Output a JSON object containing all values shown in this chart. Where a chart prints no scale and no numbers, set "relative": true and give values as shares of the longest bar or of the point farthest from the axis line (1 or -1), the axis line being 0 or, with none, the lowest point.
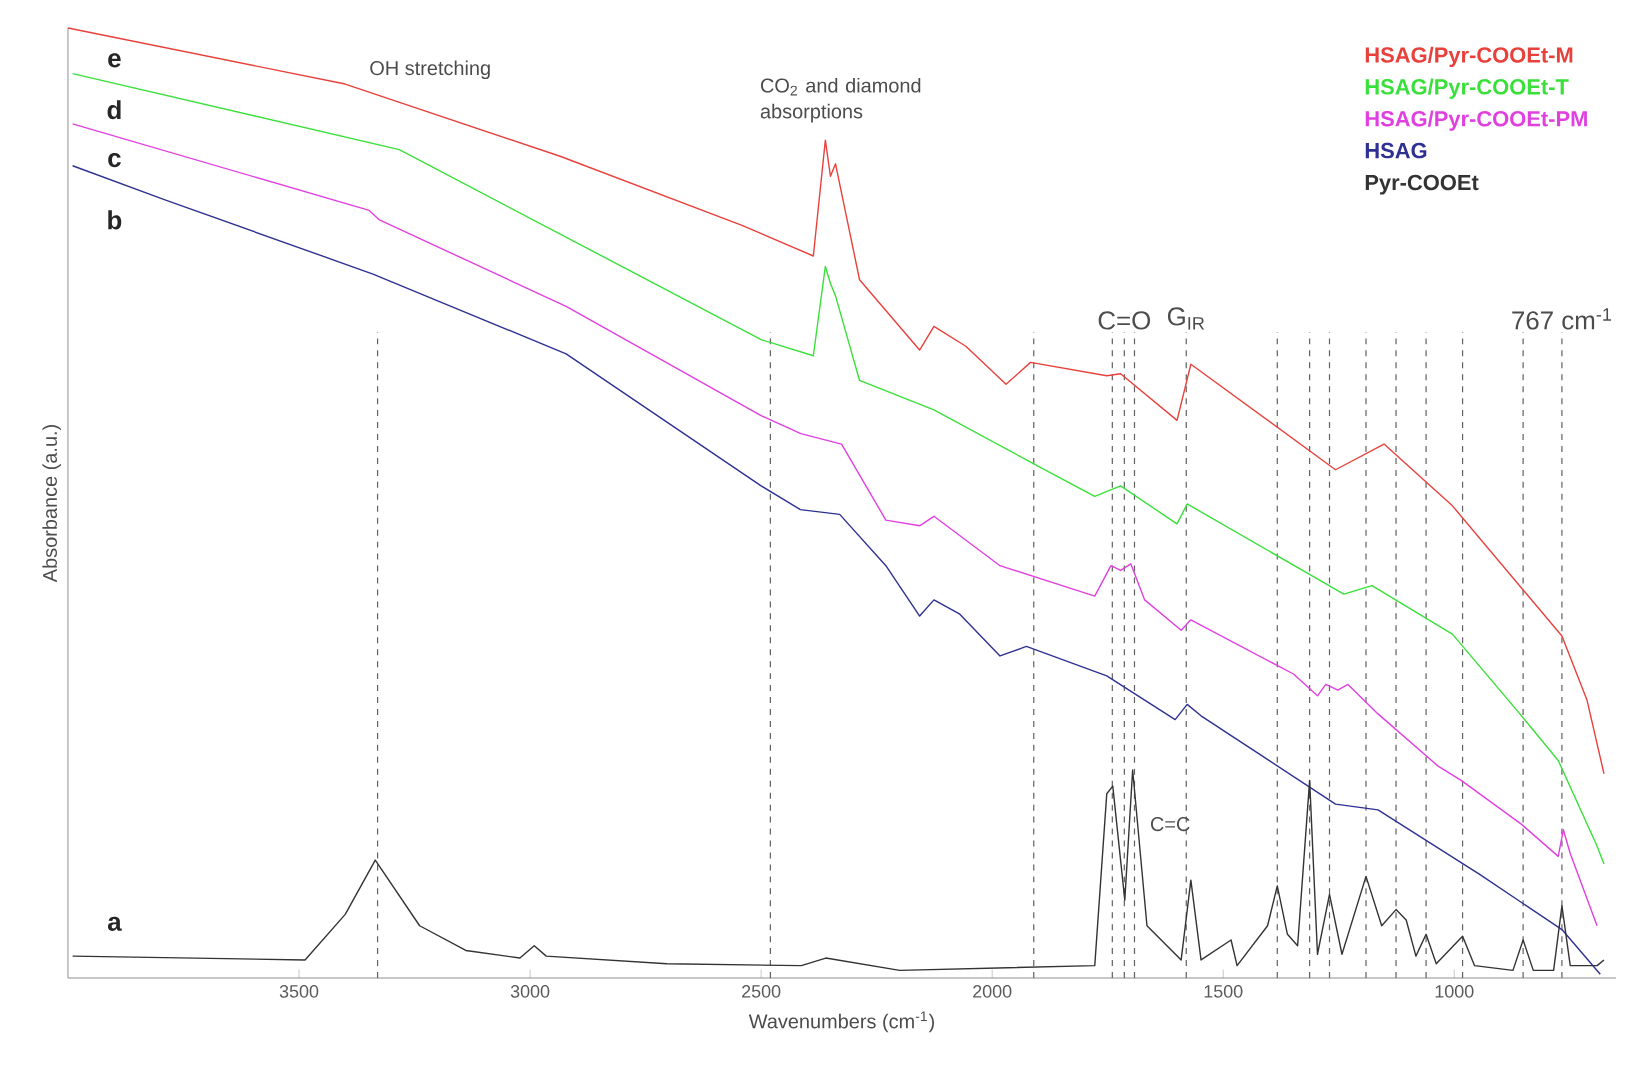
{
  "chart_data": {
    "type": "line",
    "relative": true,
    "xlabel": "Wavenumbers (cm$^{-1}$)",
    "ylabel": "Absorbance (a.u.)",
    "xlim": [
      4000,
      650
    ],
    "xticks": [
      3500,
      3000,
      2500,
      2000,
      1500,
      1000
    ],
    "legend": "top right",
    "line_style": "solid",
    "series": [
      {
        "name": "HSAG/Pyr-COOEt-M",
        "color": "#e8413b",
        "x": [
          4000,
          3400,
          2935,
          2540,
          2387,
          2361,
          2350,
          2339,
          2287,
          2157,
          2126,
          2057,
          1970,
          1917,
          1752,
          1722,
          1600,
          1570,
          1257,
          1152,
          1004,
          767,
          713,
          676
        ],
        "values": [
          1.0,
          0.941,
          0.865,
          0.792,
          0.76,
          0.882,
          0.844,
          0.857,
          0.735,
          0.661,
          0.686,
          0.665,
          0.625,
          0.648,
          0.634,
          0.636,
          0.587,
          0.646,
          0.535,
          0.562,
          0.497,
          0.36,
          0.293,
          0.215
        ]
      },
      {
        "name": "HSAG/Pyr-COOEt-T",
        "color": "#3ae03a",
        "x": [
          3990,
          3283,
          2500,
          2387,
          2361,
          2350,
          2339,
          2287,
          2126,
          1909,
          1778,
          1722,
          1600,
          1578,
          1239,
          1178,
          1004,
          858,
          775,
          691,
          676
        ],
        "values": [
          0.952,
          0.872,
          0.672,
          0.655,
          0.749,
          0.731,
          0.718,
          0.629,
          0.598,
          0.541,
          0.507,
          0.518,
          0.478,
          0.499,
          0.404,
          0.413,
          0.362,
          0.278,
          0.229,
          0.139,
          0.12
        ]
      },
      {
        "name": "HSAG/Pyr-COOEt-PM",
        "color": "#e040e0",
        "x": [
          3990,
          3348,
          3326,
          2922,
          2500,
          2414,
          2326,
          2230,
          2157,
          2126,
          1983,
          1778,
          1743,
          1722,
          1700,
          1670,
          1591,
          1570,
          1348,
          1296,
          1278,
          1252,
          1230,
          1165,
          1035,
          985,
          855,
          775,
          764,
          749,
          691
        ],
        "values": [
          0.899,
          0.808,
          0.798,
          0.707,
          0.592,
          0.573,
          0.562,
          0.482,
          0.476,
          0.486,
          0.434,
          0.402,
          0.434,
          0.429,
          0.436,
          0.398,
          0.366,
          0.377,
          0.32,
          0.297,
          0.309,
          0.303,
          0.309,
          0.278,
          0.223,
          0.208,
          0.162,
          0.128,
          0.156,
          0.131,
          0.055
        ]
      },
      {
        "name": "HSAG",
        "color": "#2e3192",
        "x": [
          3990,
          3790,
          3340,
          2922,
          2500,
          2415,
          2330,
          2230,
          2157,
          2126,
          2070,
          1983,
          1926,
          1752,
          1604,
          1578,
          1548,
          1257,
          1165,
          945,
          767,
          684
        ],
        "values": [
          0.855,
          0.819,
          0.741,
          0.657,
          0.518,
          0.493,
          0.488,
          0.434,
          0.381,
          0.398,
          0.383,
          0.339,
          0.349,
          0.318,
          0.272,
          0.288,
          0.276,
          0.183,
          0.177,
          0.109,
          0.051,
          0.004
        ]
      },
      {
        "name": "Pyr-COOEt",
        "color": "#333333",
        "x": [
          3990,
          3487,
          3400,
          3335,
          3239,
          3139,
          3022,
          2991,
          2965,
          2704,
          2413,
          2360,
          2200,
          1778,
          1752,
          1739,
          1713,
          1696,
          1665,
          1591,
          1570,
          1548,
          1483,
          1470,
          1404,
          1383,
          1361,
          1339,
          1313,
          1296,
          1270,
          1243,
          1191,
          1157,
          1126,
          1104,
          1083,
          1061,
          1039,
          982,
          956,
          873,
          851,
          829,
          785,
          767,
          749,
          691,
          676
        ],
        "values": [
          0.023,
          0.019,
          0.067,
          0.124,
          0.055,
          0.029,
          0.021,
          0.034,
          0.023,
          0.015,
          0.013,
          0.021,
          0.008,
          0.013,
          0.194,
          0.202,
          0.082,
          0.219,
          0.055,
          0.019,
          0.103,
          0.019,
          0.04,
          0.013,
          0.055,
          0.097,
          0.046,
          0.034,
          0.208,
          0.025,
          0.088,
          0.025,
          0.107,
          0.055,
          0.072,
          0.061,
          0.023,
          0.046,
          0.015,
          0.044,
          0.013,
          0.008,
          0.04,
          0.008,
          0.008,
          0.076,
          0.013,
          0.013,
          0.019
        ]
      }
    ],
    "ref_lines": [
      {
        "axis": "x",
        "value": 3330,
        "color": "#606060",
        "line_style": "dashed"
      },
      {
        "axis": "x",
        "value": 2480,
        "color": "#606060",
        "line_style": "dashed"
      },
      {
        "axis": "x",
        "value": 1910,
        "color": "#606060",
        "line_style": "dashed"
      },
      {
        "axis": "x",
        "value": 1740,
        "color": "#606060",
        "line_style": "dashed"
      },
      {
        "axis": "x",
        "value": 1714,
        "label": "C=O",
        "color": "#606060",
        "line_style": "dashed"
      },
      {
        "axis": "x",
        "value": 1692,
        "color": "#606060",
        "line_style": "dashed"
      },
      {
        "axis": "x",
        "value": 1580,
        "label": "G$_{IR}$",
        "color": "#606060",
        "line_style": "dashed"
      },
      {
        "axis": "x",
        "value": 1383,
        "color": "#606060",
        "line_style": "dashed"
      },
      {
        "axis": "x",
        "value": 1313,
        "color": "#606060",
        "line_style": "dashed"
      },
      {
        "axis": "x",
        "value": 1270,
        "color": "#606060",
        "line_style": "dashed"
      },
      {
        "axis": "x",
        "value": 1191,
        "color": "#606060",
        "line_style": "dashed"
      },
      {
        "axis": "x",
        "value": 1126,
        "color": "#606060",
        "line_style": "dashed"
      },
      {
        "axis": "x",
        "value": 1061,
        "color": "#606060",
        "line_style": "dashed"
      },
      {
        "axis": "x",
        "value": 982,
        "color": "#606060",
        "line_style": "dashed"
      },
      {
        "axis": "x",
        "value": 851,
        "color": "#606060",
        "line_style": "dashed"
      },
      {
        "axis": "x",
        "value": 767,
        "label": "767 cm$^{-1}$",
        "color": "#606060",
        "line_style": "dashed"
      }
    ],
    "annotations": [
      "OH stretching",
      "CO$_{2}$ and diamond absorptions",
      "C=C",
      "a",
      "b",
      "c",
      "d",
      "e"
    ]
  }
}
